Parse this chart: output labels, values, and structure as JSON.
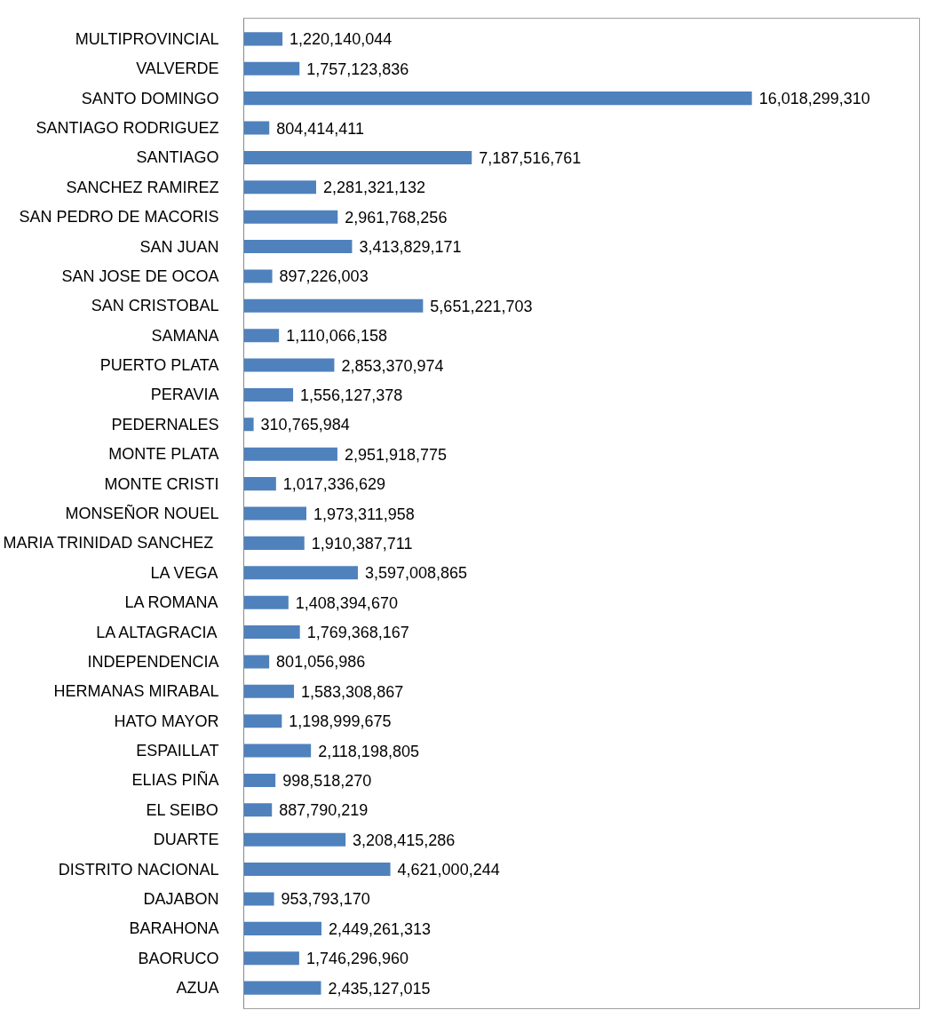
{
  "chart_data": {
    "type": "bar",
    "orientation": "horizontal",
    "grid": false,
    "tick_labels": "y",
    "value_labels": [
      "1,220,140,044",
      "1,757,123,836",
      "16,018,299,310",
      "804,414,411",
      "7,187,516,761",
      "2,281,321,132",
      "2,961,768,256",
      "3,413,829,171",
      "897,226,003",
      "5,651,221,703",
      "1,110,066,158",
      "2,853,370,974",
      "1,556,127,378",
      "310,765,984",
      "2,951,918,775",
      "1,017,336,629",
      "1,973,311,958",
      "1,910,387,711",
      "3,597,008,865",
      "1,408,394,670",
      "1,769,368,167",
      "801,056,986",
      "1,583,308,867",
      "1,198,999,675",
      "2,118,198,805",
      "998,518,270",
      "887,790,219",
      "3,208,415,286",
      "4,621,000,244",
      "953,793,170",
      "2,449,261,313",
      "1,746,296,960",
      "2,435,127,015"
    ],
    "categories": [
      "MULTIPROVINCIAL",
      "VALVERDE",
      "SANTO DOMINGO",
      "SANTIAGO RODRIGUEZ",
      "SANTIAGO",
      "SANCHEZ RAMIREZ",
      "SAN PEDRO DE MACORIS",
      "SAN JUAN",
      "SAN JOSE DE OCOA",
      "SAN CRISTOBAL",
      "SAMANA",
      "PUERTO PLATA",
      "PERAVIA",
      "PEDERNALES",
      "MONTE PLATA",
      "MONTE CRISTI",
      "MONSEÑOR NOUEL",
      "MARIA TRINIDAD  SANCHEZ",
      "LA VEGA",
      "LA ROMANA",
      "LA ALTAGRACIA",
      "INDEPENDENCIA",
      "HERMANAS MIRABAL",
      "HATO MAYOR",
      "ESPAILLAT",
      "ELIAS PIÑA",
      "EL SEIBO",
      "DUARTE",
      "DISTRITO NACIONAL",
      "DAJABON",
      "BARAHONA",
      "BAORUCO",
      "AZUA"
    ],
    "values": [
      1220140044,
      1757123836,
      16018299310,
      804414411,
      7187516761,
      2281321132,
      2961768256,
      3413829171,
      897226003,
      5651221703,
      1110066158,
      2853370974,
      1556127378,
      310765984,
      2951918775,
      1017336629,
      1973311958,
      1910387711,
      3597008865,
      1408394670,
      1769368167,
      801056986,
      1583308867,
      1198999675,
      2118198805,
      998518270,
      887790219,
      3208415286,
      4621000244,
      953793170,
      2449261313,
      1746296960,
      2435127015
    ],
    "color": "#4f81bd"
  }
}
